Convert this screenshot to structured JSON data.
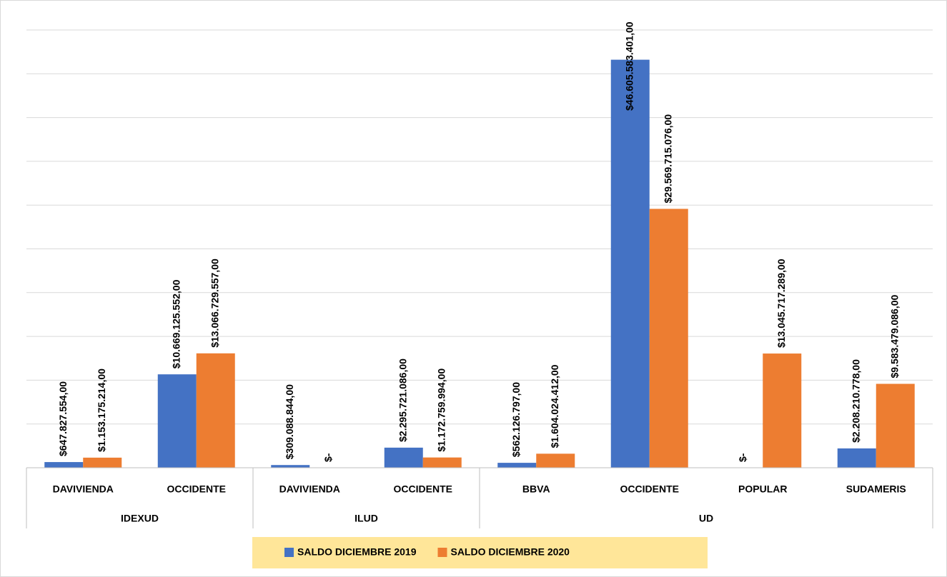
{
  "chart_data": {
    "type": "bar",
    "groups": [
      {
        "name": "IDEXUD",
        "span": [
          0,
          1
        ]
      },
      {
        "name": "ILUD",
        "span": [
          2,
          3
        ]
      },
      {
        "name": "UD",
        "span": [
          4,
          7
        ]
      }
    ],
    "categories": [
      "DAVIVIENDA",
      "OCCIDENTE",
      "DAVIVIENDA",
      "OCCIDENTE",
      "BBVA",
      "OCCIDENTE",
      "POPULAR",
      "SUDAMERIS"
    ],
    "series": [
      {
        "name": "SALDO DICIEMBRE 2019",
        "color": "#4472c4",
        "values": [
          647827554,
          10669125552,
          309088844,
          2295721086,
          562126797,
          46605583401,
          0,
          2208210778
        ],
        "value_labels": [
          "$647.827.554,00",
          "$10.669.125.552,00",
          "$309.088.844,00",
          "$2.295.721.086,00",
          "$562.126.797,00",
          "$46.605.583.401,00",
          "$-",
          "$2.208.210.778,00"
        ]
      },
      {
        "name": "SALDO DICIEMBRE 2020",
        "color": "#ed7d31",
        "values": [
          1153175214,
          13066729557,
          0,
          1172759994,
          1604024412,
          29569715076,
          13045717289,
          9583479086
        ],
        "value_labels": [
          "$1.153.175.214,00",
          "$13.066.729.557,00",
          "$-",
          "$1.172.759.994,00",
          "$1.604.024.412,00",
          "$29.569.715.076,00",
          "$13.045.717.289,00",
          "$9.583.479.086,00"
        ]
      }
    ],
    "ylim": [
      0,
      50000000000
    ],
    "yticks": [
      0,
      5000000000,
      10000000000,
      15000000000,
      20000000000,
      25000000000,
      30000000000,
      35000000000,
      40000000000,
      45000000000,
      50000000000
    ],
    "grid": true,
    "legend": "bottom"
  }
}
